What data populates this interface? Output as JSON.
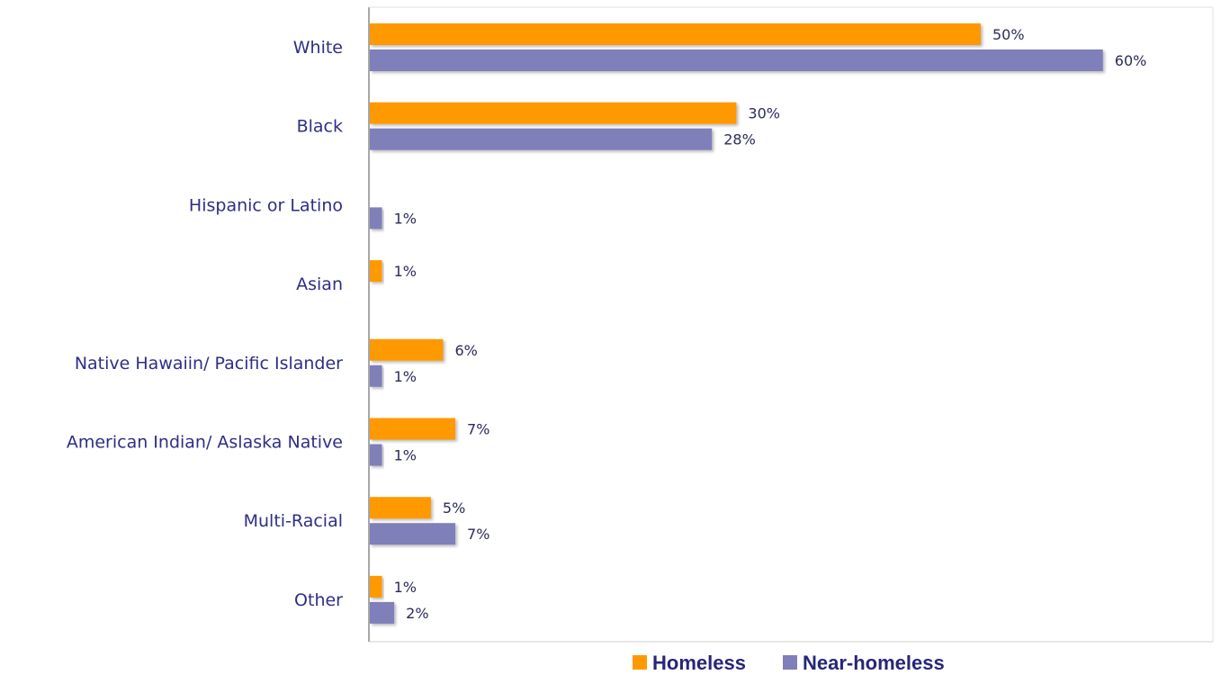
{
  "chart_data": {
    "type": "bar",
    "orientation": "horizontal",
    "categories": [
      "White",
      "Black",
      "Hispanic or Latino",
      "Asian",
      "Native Hawaiin/ Pacific Islander",
      "American Indian/ Aslaska Native",
      "Multi-Racial",
      "Other"
    ],
    "series": [
      {
        "name": "Homeless",
        "color": "#ff9900",
        "values": [
          50,
          30,
          null,
          1,
          6,
          7,
          5,
          1
        ],
        "labels": [
          "50%",
          "30%",
          "",
          "1%",
          "6%",
          "7%",
          "5%",
          "1%"
        ]
      },
      {
        "name": "Near-homeless",
        "color": "#7f7fba",
        "values": [
          60,
          28,
          1,
          null,
          1,
          1,
          7,
          2
        ],
        "labels": [
          "60%",
          "28%",
          "1%",
          "",
          "1%",
          "1%",
          "7%",
          "2%"
        ]
      }
    ],
    "xlim": [
      0,
      69
    ],
    "grid": false,
    "legend": "bottom"
  }
}
